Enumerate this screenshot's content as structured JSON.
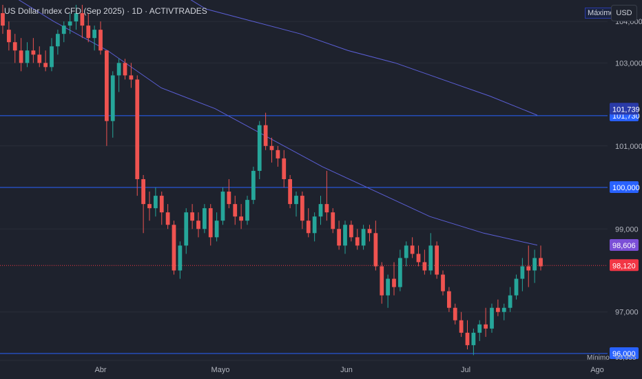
{
  "header": {
    "title": "US Dollar Index CFD (Sep 2025) · 1D · ACTIVTRADES",
    "max_label": "Máximo",
    "currency": "USD"
  },
  "colors": {
    "background": "#1e222d",
    "up": "#26a69a",
    "down": "#ef5350",
    "hline": "#2962ff",
    "ma": "#5b5fd6",
    "ma_tag": "#7b4fd6",
    "price_tag": "#f23645",
    "grid": "#2a2e39"
  },
  "chart_data": {
    "type": "candlestick",
    "y_range": [
      95.85,
      104.45
    ],
    "y_ticks": [
      "104,000",
      "103,000",
      "101,000",
      "99,000",
      "97,000"
    ],
    "x_labels": [
      "Abr",
      "Mayo",
      "Jun",
      "Jul",
      "Ago"
    ],
    "horizontal_levels": [
      {
        "price": 101.73,
        "label": "101,730"
      },
      {
        "price": 100.0,
        "label": "100,000"
      },
      {
        "price": 96.0,
        "label": "96,000"
      }
    ],
    "tags": {
      "ma_long": "101,739",
      "ma_short": "98,606",
      "last_price": "98,120",
      "min_price": "95,955",
      "min_label": "Mínimo"
    },
    "moving_average_long": [
      105.0,
      104.3,
      104.0,
      103.7,
      103.3,
      103.0,
      102.6,
      102.2,
      101.74
    ],
    "moving_average_short": [
      104.8,
      104.0,
      103.3,
      102.4,
      101.9,
      101.2,
      100.5,
      99.9,
      99.3,
      98.9,
      98.61
    ],
    "candles": [
      [
        104.2,
        104.4,
        103.7,
        103.9
      ],
      [
        103.8,
        104.0,
        103.3,
        103.5
      ],
      [
        103.5,
        103.7,
        103.0,
        103.3
      ],
      [
        103.3,
        103.6,
        102.8,
        103.0
      ],
      [
        103.0,
        103.5,
        102.9,
        103.3
      ],
      [
        103.3,
        103.6,
        103.0,
        103.2
      ],
      [
        103.2,
        103.4,
        102.9,
        103.0
      ],
      [
        103.0,
        103.3,
        102.8,
        102.9
      ],
      [
        102.9,
        103.6,
        102.8,
        103.4
      ],
      [
        103.4,
        103.8,
        103.2,
        103.7
      ],
      [
        103.7,
        104.0,
        103.5,
        103.9
      ],
      [
        103.9,
        104.2,
        103.7,
        104.0
      ],
      [
        104.0,
        104.4,
        103.8,
        104.2
      ],
      [
        104.2,
        104.4,
        103.6,
        103.9
      ],
      [
        103.9,
        104.2,
        103.5,
        103.6
      ],
      [
        103.6,
        103.9,
        103.3,
        103.8
      ],
      [
        103.8,
        104.0,
        103.2,
        103.3
      ],
      [
        103.3,
        103.3,
        101.0,
        101.6
      ],
      [
        101.6,
        102.8,
        101.2,
        102.7
      ],
      [
        102.7,
        103.1,
        102.3,
        103.0
      ],
      [
        103.0,
        103.1,
        102.6,
        102.7
      ],
      [
        102.7,
        103.0,
        102.4,
        102.6
      ],
      [
        102.6,
        102.7,
        99.8,
        100.2
      ],
      [
        100.2,
        100.3,
        98.9,
        99.6
      ],
      [
        99.6,
        99.9,
        99.2,
        99.5
      ],
      [
        99.5,
        100.0,
        99.3,
        99.8
      ],
      [
        99.8,
        99.9,
        99.1,
        99.4
      ],
      [
        99.4,
        99.6,
        99.0,
        99.1
      ],
      [
        99.1,
        99.2,
        97.9,
        98.0
      ],
      [
        98.0,
        98.7,
        97.8,
        98.6
      ],
      [
        98.6,
        99.5,
        98.4,
        99.4
      ],
      [
        99.4,
        99.6,
        99.0,
        99.2
      ],
      [
        99.2,
        99.4,
        98.8,
        99.0
      ],
      [
        99.0,
        99.6,
        98.9,
        99.5
      ],
      [
        99.5,
        99.6,
        98.6,
        98.8
      ],
      [
        98.8,
        99.4,
        98.7,
        99.2
      ],
      [
        99.2,
        100.0,
        99.1,
        99.9
      ],
      [
        99.9,
        100.2,
        99.5,
        99.6
      ],
      [
        99.6,
        99.8,
        99.1,
        99.3
      ],
      [
        99.3,
        99.6,
        99.0,
        99.2
      ],
      [
        99.2,
        99.8,
        99.1,
        99.7
      ],
      [
        99.7,
        100.5,
        99.6,
        100.4
      ],
      [
        100.4,
        101.6,
        100.2,
        101.5
      ],
      [
        101.5,
        101.8,
        100.9,
        101.0
      ],
      [
        101.0,
        101.2,
        100.6,
        100.9
      ],
      [
        100.9,
        101.0,
        100.5,
        100.7
      ],
      [
        100.7,
        100.9,
        100.0,
        100.2
      ],
      [
        100.2,
        100.3,
        99.5,
        99.6
      ],
      [
        99.6,
        99.9,
        99.3,
        99.8
      ],
      [
        99.8,
        99.9,
        99.0,
        99.2
      ],
      [
        99.2,
        99.5,
        98.8,
        98.9
      ],
      [
        98.9,
        99.4,
        98.7,
        99.3
      ],
      [
        99.3,
        99.8,
        99.1,
        99.6
      ],
      [
        99.6,
        100.4,
        99.2,
        99.4
      ],
      [
        99.4,
        99.5,
        98.9,
        99.0
      ],
      [
        99.0,
        99.2,
        98.5,
        98.6
      ],
      [
        98.6,
        99.2,
        98.4,
        99.1
      ],
      [
        99.1,
        99.2,
        98.7,
        98.8
      ],
      [
        98.8,
        99.0,
        98.5,
        98.6
      ],
      [
        98.6,
        99.1,
        98.5,
        99.0
      ],
      [
        99.0,
        99.1,
        98.7,
        98.9
      ],
      [
        98.9,
        99.2,
        98.0,
        98.1
      ],
      [
        98.1,
        98.2,
        97.2,
        97.4
      ],
      [
        97.4,
        97.9,
        97.1,
        97.8
      ],
      [
        97.8,
        98.2,
        97.4,
        97.6
      ],
      [
        97.6,
        98.5,
        97.5,
        98.3
      ],
      [
        98.3,
        98.7,
        98.1,
        98.6
      ],
      [
        98.6,
        98.8,
        98.3,
        98.4
      ],
      [
        98.4,
        98.6,
        98.1,
        98.2
      ],
      [
        98.2,
        98.5,
        97.9,
        98.0
      ],
      [
        98.0,
        98.9,
        97.9,
        98.6
      ],
      [
        98.6,
        98.7,
        97.8,
        97.9
      ],
      [
        97.9,
        98.0,
        97.4,
        97.5
      ],
      [
        97.5,
        97.6,
        97.0,
        97.1
      ],
      [
        97.1,
        97.2,
        96.7,
        96.8
      ],
      [
        96.8,
        97.0,
        96.4,
        96.5
      ],
      [
        96.5,
        96.8,
        96.1,
        96.2
      ],
      [
        96.2,
        96.6,
        95.96,
        96.5
      ],
      [
        96.5,
        96.8,
        96.3,
        96.7
      ],
      [
        96.7,
        97.1,
        96.4,
        96.6
      ],
      [
        96.6,
        97.2,
        96.5,
        97.1
      ],
      [
        97.1,
        97.3,
        96.9,
        97.0
      ],
      [
        97.0,
        97.2,
        96.8,
        97.1
      ],
      [
        97.1,
        97.6,
        97.0,
        97.4
      ],
      [
        97.4,
        97.9,
        97.3,
        97.8
      ],
      [
        97.8,
        98.3,
        97.5,
        98.1
      ],
      [
        98.1,
        98.6,
        97.6,
        98.0
      ],
      [
        98.0,
        98.5,
        97.7,
        98.3
      ],
      [
        98.3,
        98.6,
        98.0,
        98.1
      ]
    ]
  }
}
